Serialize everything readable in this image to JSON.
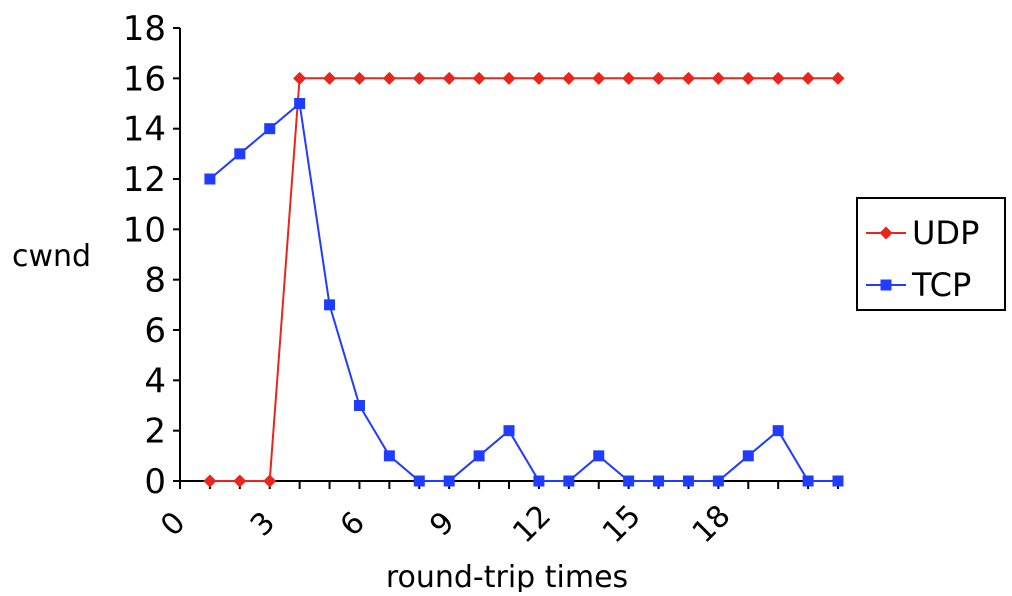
{
  "chart_data": {
    "type": "line",
    "title": "",
    "xlabel": "round-trip times",
    "ylabel": "cwnd",
    "ylim": [
      0,
      18
    ],
    "yticks": [
      0,
      2,
      4,
      6,
      8,
      10,
      12,
      14,
      16,
      18
    ],
    "xticks": [
      0,
      3,
      6,
      9,
      12,
      15,
      18
    ],
    "xtick_labels": [
      "0",
      "3",
      "6",
      "9",
      "12",
      "15",
      "18"
    ],
    "x": [
      1,
      2,
      3,
      4,
      5,
      6,
      7,
      8,
      9,
      10,
      11,
      12,
      13,
      14,
      15,
      16,
      17,
      18,
      19,
      20,
      21,
      22
    ],
    "series": [
      {
        "name": "UDP",
        "color": "#e8261c",
        "marker": "diamond",
        "values": [
          0,
          0,
          0,
          16,
          16,
          16,
          16,
          16,
          16,
          16,
          16,
          16,
          16,
          16,
          16,
          16,
          16,
          16,
          16,
          16,
          16,
          16
        ]
      },
      {
        "name": "TCP",
        "color": "#1f3cff",
        "marker": "square",
        "values": [
          12,
          13,
          14,
          15,
          7,
          3,
          1,
          0,
          0,
          1,
          2,
          0,
          0,
          1,
          0,
          0,
          0,
          0,
          1,
          2,
          0,
          0
        ]
      }
    ],
    "legend_position": "right",
    "grid": false
  }
}
